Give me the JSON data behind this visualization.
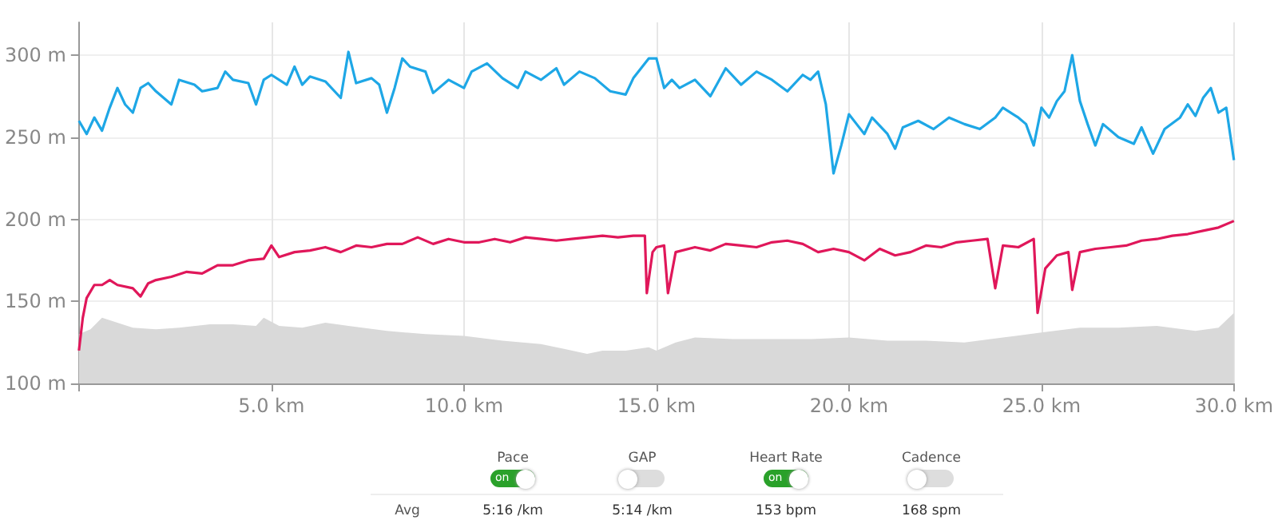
{
  "chart_data": {
    "type": "line",
    "xlim": [
      0,
      30
    ],
    "ylim": [
      100,
      320
    ],
    "xticks": [
      {
        "value": 0,
        "label": null
      },
      {
        "value": 5,
        "label": "5.0 km"
      },
      {
        "value": 10,
        "label": "10.0 km"
      },
      {
        "value": 15,
        "label": "15.0 km"
      },
      {
        "value": 20,
        "label": "20.0 km"
      },
      {
        "value": 25,
        "label": "25.0 km"
      },
      {
        "value": 30,
        "label": "30.0 km"
      }
    ],
    "yticks": [
      {
        "value": 100,
        "label": "100 m"
      },
      {
        "value": 150,
        "label": "150 m"
      },
      {
        "value": 200,
        "label": "200 m"
      },
      {
        "value": 250,
        "label": "250 m"
      },
      {
        "value": 300,
        "label": "300 m"
      }
    ],
    "grid": true,
    "marker": "none",
    "series": [
      {
        "type": "area",
        "color": "#d9d9d9",
        "x": [
          0,
          0.3,
          0.6,
          1,
          1.4,
          2,
          2.6,
          3.4,
          4,
          4.6,
          4.8,
          5.2,
          5.8,
          6.4,
          7,
          8,
          9,
          10,
          11,
          12,
          12.6,
          13.2,
          13.6,
          14.2,
          14.8,
          15,
          15.5,
          16,
          17,
          18,
          19,
          20,
          21,
          22,
          23,
          24,
          25,
          26,
          27,
          28,
          29,
          29.6,
          30
        ],
        "values": [
          130,
          133,
          140,
          137,
          134,
          133,
          134,
          136,
          136,
          135,
          140,
          135,
          134,
          137,
          135,
          132,
          130,
          129,
          126,
          124,
          121,
          118,
          120,
          120,
          122,
          120,
          125,
          128,
          127,
          127,
          127,
          128,
          126,
          126,
          125,
          128,
          131,
          134,
          134,
          135,
          132,
          134,
          143
        ]
      },
      {
        "color": "#1ea7e6",
        "x": [
          0,
          0.2,
          0.4,
          0.6,
          0.8,
          1,
          1.2,
          1.4,
          1.6,
          1.8,
          2,
          2.4,
          2.6,
          3,
          3.2,
          3.6,
          3.8,
          4,
          4.4,
          4.6,
          4.8,
          5,
          5.4,
          5.6,
          5.8,
          6,
          6.4,
          6.8,
          7,
          7.2,
          7.6,
          7.8,
          8,
          8.2,
          8.4,
          8.6,
          9,
          9.2,
          9.6,
          10,
          10.2,
          10.6,
          11,
          11.4,
          11.6,
          12,
          12.4,
          12.6,
          13,
          13.4,
          13.8,
          14.2,
          14.4,
          14.8,
          15,
          15.2,
          15.4,
          15.6,
          16,
          16.4,
          16.8,
          17.2,
          17.6,
          18,
          18.4,
          18.8,
          19,
          19.2,
          19.4,
          19.6,
          19.8,
          20,
          20.2,
          20.4,
          20.6,
          21,
          21.2,
          21.4,
          21.8,
          22.2,
          22.6,
          23,
          23.4,
          23.8,
          24,
          24.4,
          24.6,
          24.8,
          25,
          25.2,
          25.4,
          25.6,
          25.8,
          26,
          26.2,
          26.4,
          26.6,
          27,
          27.4,
          27.6,
          27.9,
          28.2,
          28.6,
          28.8,
          29,
          29.2,
          29.4,
          29.6,
          29.8,
          30
        ],
        "values": [
          260,
          252,
          262,
          254,
          268,
          280,
          270,
          265,
          280,
          283,
          278,
          270,
          285,
          282,
          278,
          280,
          290,
          285,
          283,
          270,
          285,
          288,
          282,
          293,
          282,
          287,
          284,
          274,
          302,
          283,
          286,
          282,
          265,
          280,
          298,
          293,
          290,
          277,
          285,
          280,
          290,
          295,
          286,
          280,
          290,
          285,
          292,
          282,
          290,
          286,
          278,
          276,
          286,
          298,
          298,
          280,
          285,
          280,
          285,
          275,
          292,
          282,
          290,
          285,
          278,
          288,
          285,
          290,
          270,
          228,
          245,
          264,
          258,
          252,
          262,
          252,
          243,
          256,
          260,
          255,
          262,
          258,
          255,
          262,
          268,
          262,
          258,
          245,
          268,
          262,
          272,
          278,
          300,
          272,
          258,
          245,
          258,
          250,
          246,
          256,
          240,
          255,
          262,
          270,
          263,
          274,
          280,
          265,
          268,
          236
        ]
      },
      {
        "color": "#e0175a",
        "x": [
          0,
          0.1,
          0.2,
          0.4,
          0.6,
          0.8,
          1,
          1.4,
          1.6,
          1.8,
          2,
          2.4,
          2.8,
          3.2,
          3.6,
          4,
          4.4,
          4.8,
          5,
          5.2,
          5.6,
          6,
          6.4,
          6.8,
          7.2,
          7.6,
          8,
          8.4,
          8.8,
          9.2,
          9.6,
          10,
          10.4,
          10.8,
          11.2,
          11.6,
          12,
          12.4,
          12.8,
          13.2,
          13.6,
          14,
          14.4,
          14.7,
          14.75,
          14.9,
          15,
          15.2,
          15.3,
          15.5,
          16,
          16.4,
          16.8,
          17.2,
          17.6,
          18,
          18.4,
          18.8,
          19.2,
          19.6,
          20,
          20.4,
          20.8,
          21.2,
          21.6,
          22,
          22.4,
          22.8,
          23.2,
          23.6,
          23.8,
          24,
          24.4,
          24.8,
          24.9,
          25.1,
          25.4,
          25.7,
          25.8,
          26,
          26.4,
          26.8,
          27.2,
          27.6,
          28,
          28.4,
          28.8,
          29.2,
          29.6,
          30
        ],
        "values": [
          120,
          140,
          152,
          160,
          160,
          163,
          160,
          158,
          153,
          161,
          163,
          165,
          168,
          167,
          172,
          172,
          175,
          176,
          184,
          177,
          180,
          181,
          183,
          180,
          184,
          183,
          185,
          185,
          189,
          185,
          188,
          186,
          186,
          188,
          186,
          189,
          188,
          187,
          188,
          189,
          190,
          189,
          190,
          190,
          155,
          180,
          183,
          184,
          155,
          180,
          183,
          181,
          185,
          184,
          183,
          186,
          187,
          185,
          180,
          182,
          180,
          175,
          182,
          178,
          180,
          184,
          183,
          186,
          187,
          188,
          158,
          184,
          183,
          188,
          143,
          170,
          178,
          180,
          157,
          180,
          182,
          183,
          184,
          187,
          188,
          190,
          191,
          193,
          195,
          199
        ]
      }
    ],
    "annotations": [
      "Pace",
      "on",
      "GAP",
      "Heart Rate",
      "on",
      "Cadence",
      "Avg",
      "5:16 /km",
      "5:14 /km",
      "153 bpm",
      "168 spm"
    ]
  }
}
